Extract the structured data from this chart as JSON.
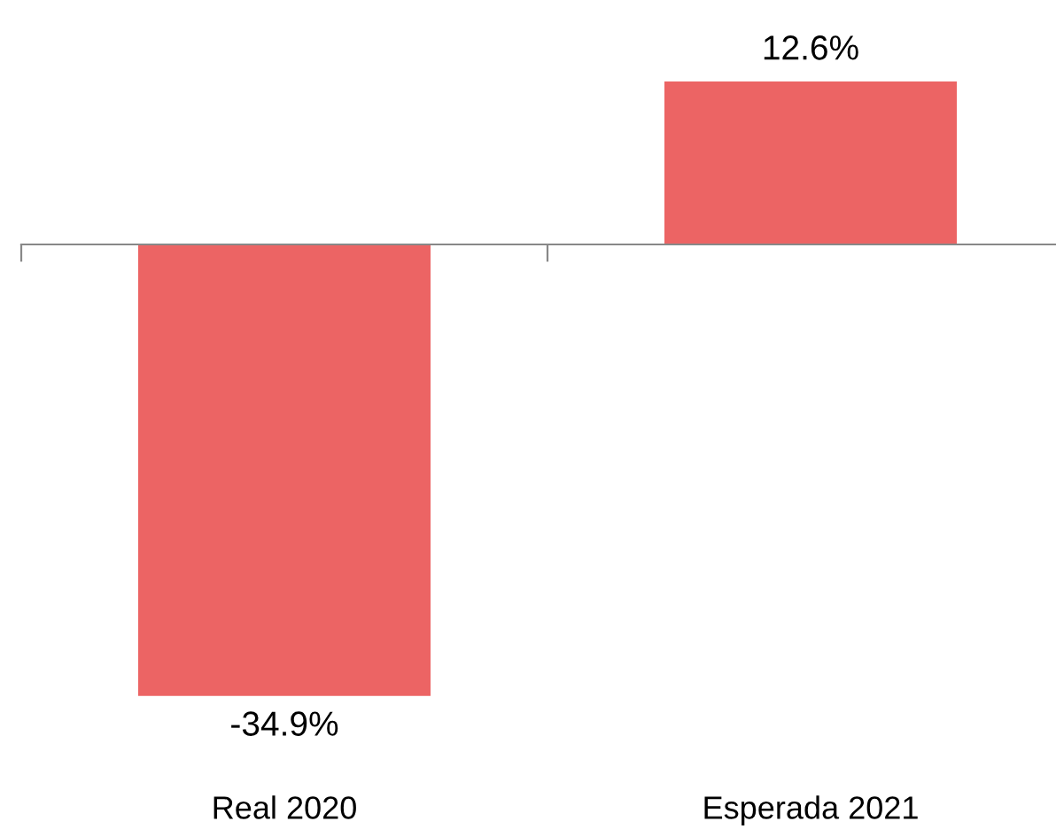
{
  "chart_data": {
    "type": "bar",
    "categories": [
      "Real 2020",
      "Esperada 2021"
    ],
    "values": [
      -34.9,
      12.6
    ],
    "color": "#ec6464",
    "value_labels": [
      "-34.9%",
      "12.6%"
    ],
    "grid": false,
    "legend": false
  }
}
